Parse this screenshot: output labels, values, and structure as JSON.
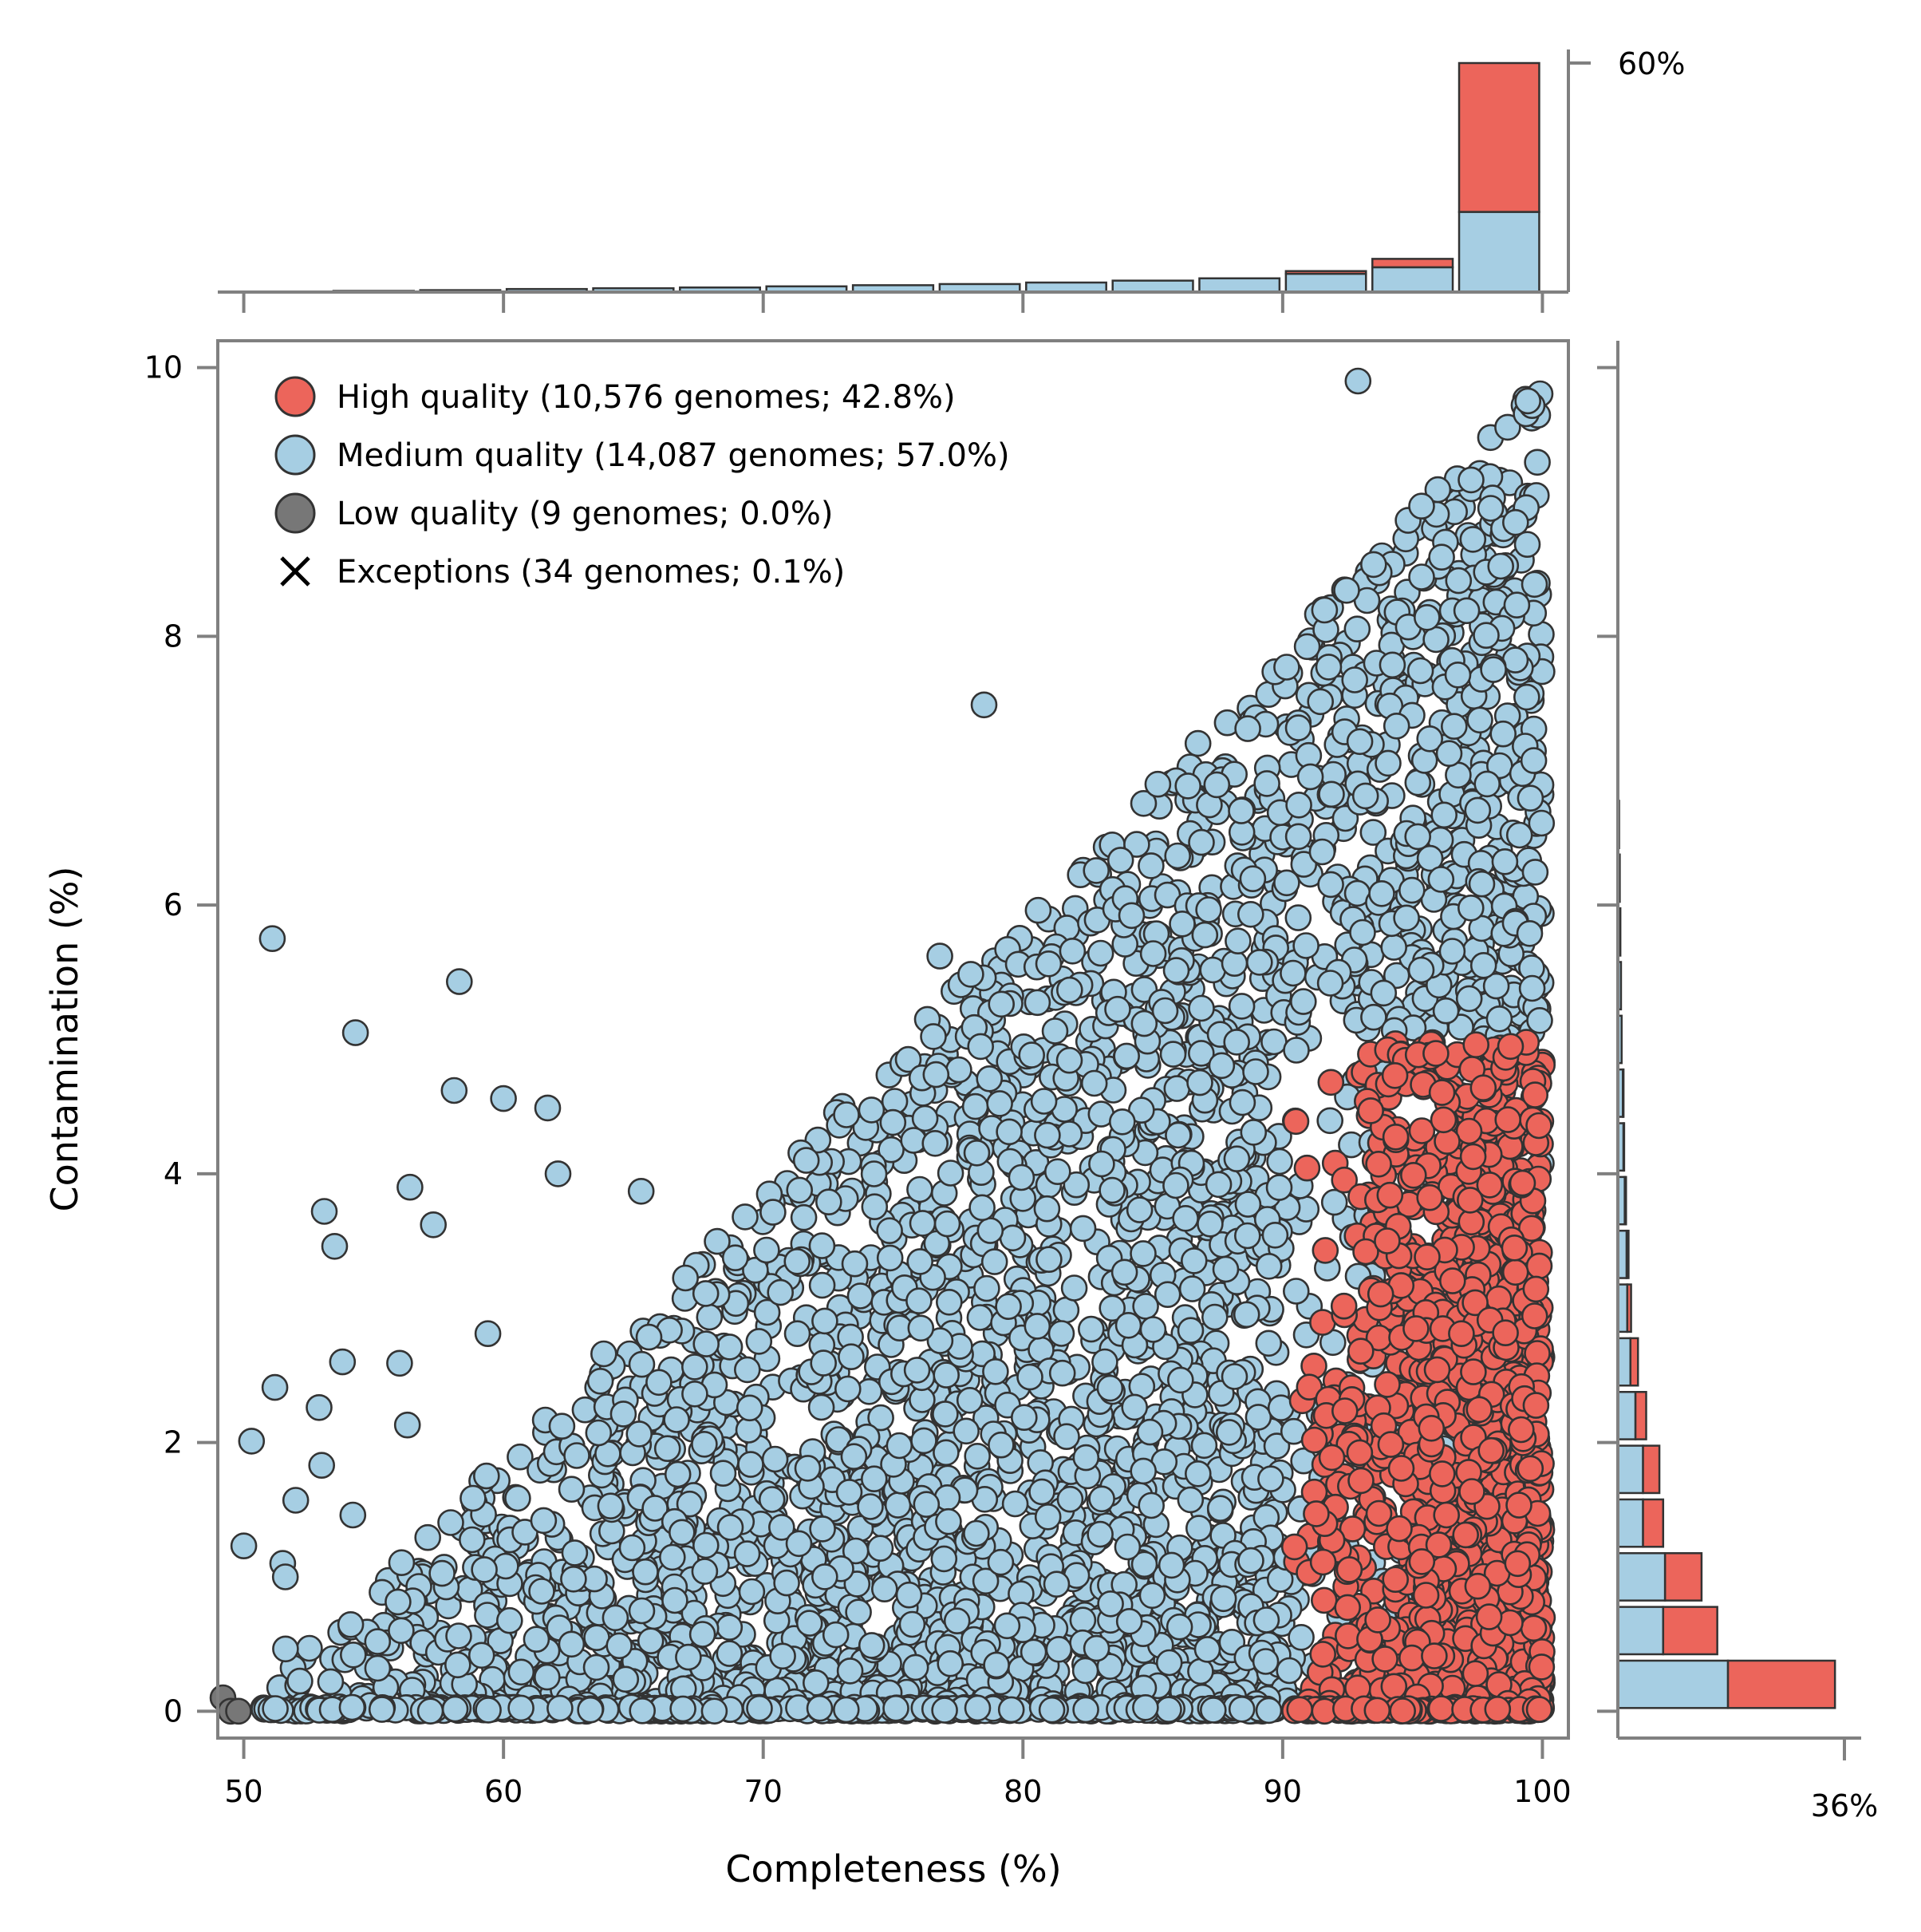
{
  "chart_data": {
    "type": "scatter",
    "xlabel": "Completeness (%)",
    "ylabel": "Contamination (%)",
    "xlim": [
      49,
      101
    ],
    "ylim": [
      -0.2,
      10.2
    ],
    "x_ticks": [
      50,
      60,
      70,
      80,
      90,
      100
    ],
    "y_ticks": [
      0,
      2,
      4,
      6,
      8,
      10
    ],
    "legend_position": "top-left",
    "grid": false,
    "colors": {
      "high": "#ec655b",
      "medium": "#a6cee3",
      "low": "#777777",
      "edge": "#333333",
      "axis": "#808080"
    },
    "series": [
      {
        "name": "High quality (10,576 genomes; 42.8%)",
        "marker": "circle",
        "color": "#ec655b"
      },
      {
        "name": "Medium quality (14,087 genomes; 57.0%)",
        "marker": "circle",
        "color": "#a6cee3"
      },
      {
        "name": "Low quality (9 genomes; 0.0%)",
        "marker": "circle",
        "color": "#777777"
      },
      {
        "name": "Exceptions (34 genomes; 0.1%)",
        "marker": "x",
        "color": "#000000"
      }
    ],
    "outlier_points": [
      {
        "x": 51.1,
        "y": 5.75
      },
      {
        "x": 54.3,
        "y": 5.05
      },
      {
        "x": 58.3,
        "y": 5.43
      },
      {
        "x": 58.1,
        "y": 4.62
      },
      {
        "x": 60.0,
        "y": 4.56
      },
      {
        "x": 61.7,
        "y": 4.49
      },
      {
        "x": 62.1,
        "y": 4.0
      },
      {
        "x": 56.4,
        "y": 3.9
      },
      {
        "x": 65.3,
        "y": 3.87
      },
      {
        "x": 53.1,
        "y": 3.72
      },
      {
        "x": 57.3,
        "y": 3.62
      },
      {
        "x": 53.5,
        "y": 3.46
      },
      {
        "x": 59.4,
        "y": 2.81
      },
      {
        "x": 53.8,
        "y": 2.6
      },
      {
        "x": 56.0,
        "y": 2.59
      },
      {
        "x": 51.2,
        "y": 2.41
      },
      {
        "x": 52.9,
        "y": 2.26
      },
      {
        "x": 56.3,
        "y": 2.13
      },
      {
        "x": 50.3,
        "y": 2.01
      },
      {
        "x": 53.0,
        "y": 1.83
      },
      {
        "x": 52.0,
        "y": 1.57
      },
      {
        "x": 54.2,
        "y": 1.46
      },
      {
        "x": 50.0,
        "y": 1.23
      },
      {
        "x": 51.5,
        "y": 1.1
      },
      {
        "x": 51.6,
        "y": 1.0
      },
      {
        "x": 78.5,
        "y": 7.49
      },
      {
        "x": 92.9,
        "y": 9.9
      },
      {
        "x": 76.8,
        "y": 5.62
      }
    ],
    "low_quality_points": [
      {
        "x": 49.2,
        "y": 0.1
      },
      {
        "x": 49.5,
        "y": 0.0
      },
      {
        "x": 49.8,
        "y": 0.0
      }
    ],
    "top_histogram": {
      "tick_label": "60%",
      "tick_value": 60,
      "bin_edges": [
        50,
        53.33,
        56.67,
        60,
        63.33,
        66.67,
        70,
        73.33,
        76.67,
        80,
        83.33,
        86.67,
        90,
        93.33,
        96.67,
        100
      ],
      "medium_percent": [
        0.1,
        0.3,
        0.5,
        0.8,
        1.0,
        1.2,
        1.5,
        1.8,
        2.1,
        2.5,
        3.0,
        3.6,
        4.8,
        6.5,
        21.0
      ],
      "high_percent": [
        0,
        0,
        0,
        0,
        0,
        0,
        0,
        0,
        0,
        0,
        0,
        0,
        0.7,
        2.2,
        39.0
      ]
    },
    "right_histogram": {
      "tick_label": "36%",
      "tick_value": 36,
      "bin_edges": [
        0,
        0.4,
        0.8,
        1.2,
        1.6,
        2.0,
        2.4,
        2.8,
        3.2,
        3.6,
        4.0,
        4.4,
        4.8,
        5.2,
        5.6,
        6.0,
        6.4,
        6.8
      ],
      "medium_percent": [
        17.5,
        7.2,
        7.5,
        4.0,
        4.0,
        2.8,
        2.0,
        1.5,
        1.4,
        1.1,
        0.9,
        0.8,
        0.6,
        0.5,
        0.4,
        0.3,
        0.2
      ],
      "high_percent": [
        17.0,
        8.6,
        5.8,
        3.2,
        2.6,
        1.7,
        1.2,
        0.6,
        0.3,
        0.2,
        0.1,
        0.1,
        0,
        0,
        0,
        0,
        0
      ]
    }
  }
}
